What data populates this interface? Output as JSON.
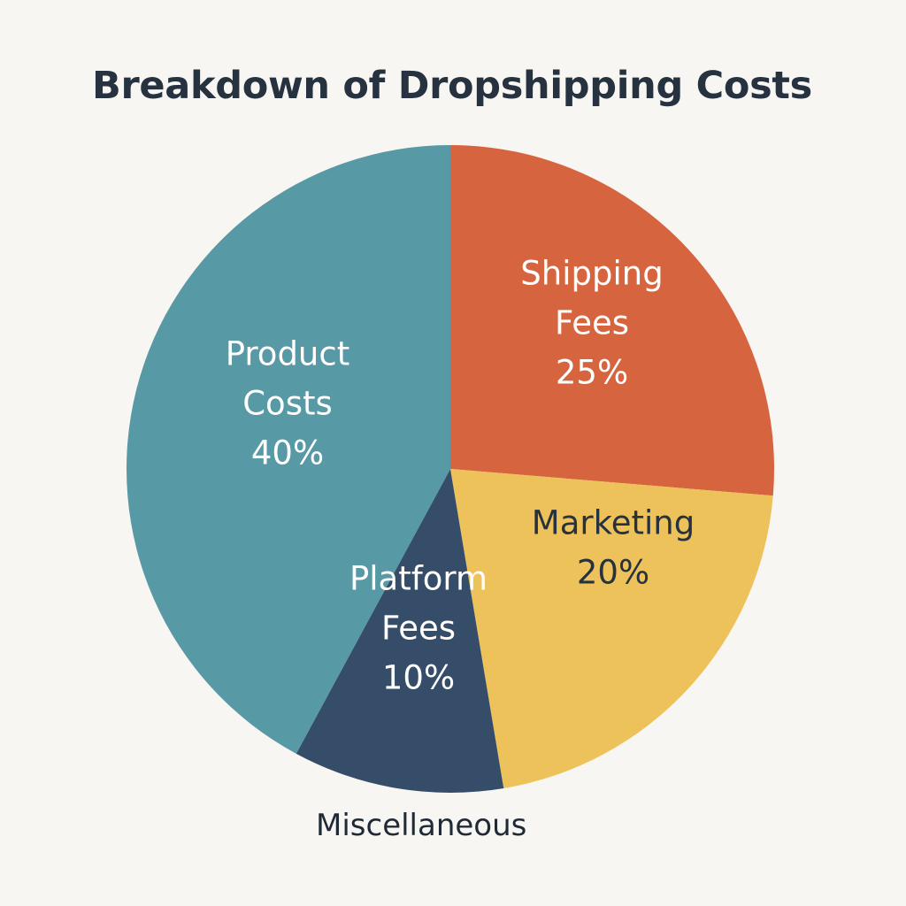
{
  "chart_data": {
    "type": "pie",
    "title": "Breakdown of Dropshipping Costs",
    "slices": [
      {
        "label_lines": [
          "Shipping",
          "Fees"
        ],
        "value": 25,
        "value_label": "25%",
        "color": "#d6643e",
        "text_color": "#ffffff"
      },
      {
        "label_lines": [
          "Marketing"
        ],
        "value": 20,
        "value_label": "20%",
        "color": "#eec25a",
        "text_color": "#26323f"
      },
      {
        "label_lines": [
          "Platform",
          "Fees"
        ],
        "value": 10,
        "value_label": "10%",
        "color": "#354d68",
        "text_color": "#ffffff"
      },
      {
        "label_lines": [
          "Product",
          "Costs"
        ],
        "value": 40,
        "value_label": "40%",
        "color": "#5799a5",
        "text_color": "#ffffff"
      }
    ],
    "outside_label": "Miscellaneous"
  }
}
